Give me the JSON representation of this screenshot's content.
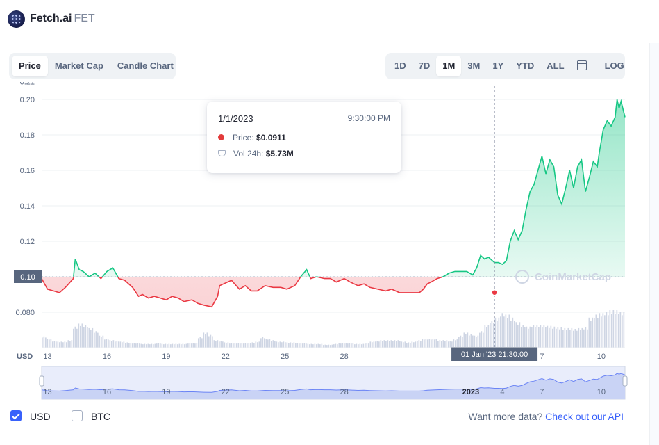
{
  "header": {
    "coin_name": "Fetch.ai",
    "coin_symbol": "FET"
  },
  "tabs_left": [
    "Price",
    "Market Cap",
    "Candle Chart"
  ],
  "active_left": "Price",
  "tabs_right": [
    "1D",
    "7D",
    "1M",
    "3M",
    "1Y",
    "YTD",
    "ALL"
  ],
  "active_right": "1M",
  "log_label": "LOG",
  "icons": {
    "calendar": "calendar-icon",
    "logo": "fetch-ai-logo"
  },
  "colors": {
    "up": "#16c784",
    "down": "#ea3943",
    "accent": "#3861fb",
    "nav": "#e9edfb"
  },
  "tooltip": {
    "date": "1/1/2023",
    "time": "9:30:00 PM",
    "price_label": "Price:",
    "price_value": "$0.0911",
    "vol_label": "Vol 24h:",
    "vol_value": "$5.73M"
  },
  "crosshair_label": "01 Jan '23   21:30:00",
  "crosshair_price_label": "0.10",
  "watermark": "CoinMarketCap",
  "bottom": {
    "usd_label": "USD",
    "btc_label": "BTC",
    "usd_checked": true,
    "btc_checked": false,
    "more_text": "Want more data?",
    "api_link": "Check out our API"
  },
  "chart_data": {
    "type": "line",
    "currency_label": "USD",
    "ylim": [
      0.072,
      0.21
    ],
    "yticks": [
      0.21,
      0.2,
      0.18,
      0.16,
      0.14,
      0.12,
      0.1,
      0.08
    ],
    "ytick_labels": [
      "0.21",
      "0.20",
      "0.18",
      "0.16",
      "0.14",
      "0.12",
      "0.10",
      "0.080"
    ],
    "xticks": [
      13,
      16,
      19,
      22,
      25,
      28,
      4,
      7,
      10
    ],
    "baseline_price": 0.1,
    "x": [
      12.9,
      13.2,
      13.5,
      13.8,
      14.1,
      14.5,
      14.6,
      14.8,
      15.0,
      15.3,
      15.6,
      15.9,
      16.2,
      16.5,
      16.8,
      17.1,
      17.5,
      17.8,
      18.0,
      18.3,
      18.6,
      18.9,
      19.2,
      19.5,
      19.8,
      20.1,
      20.5,
      20.8,
      21.1,
      21.5,
      21.8,
      21.9,
      22.1,
      22.5,
      22.9,
      23.2,
      23.5,
      23.8,
      24.2,
      24.6,
      25.0,
      25.3,
      25.7,
      26.0,
      26.3,
      26.5,
      26.8,
      27.2,
      27.5,
      27.8,
      28.2,
      28.5,
      28.9,
      29.2,
      29.5,
      29.9,
      30.3,
      30.6,
      31.0,
      31.3,
      31.7,
      32.0,
      32.2,
      32.4,
      32.6,
      32.9,
      33.2,
      33.5,
      33.8,
      34.1,
      34.4,
      34.7,
      34.9,
      35.1,
      35.3,
      35.5,
      35.8,
      36.0,
      36.2,
      36.4,
      36.6,
      36.8,
      37.0,
      37.2,
      37.4,
      37.6,
      37.8,
      38.0,
      38.2,
      38.4,
      38.6,
      38.8,
      39.0,
      39.2,
      39.4,
      39.6,
      39.8,
      40.0,
      40.2,
      40.4,
      40.6,
      40.8,
      41.0,
      41.1,
      41.3,
      41.5,
      41.7,
      41.9,
      42.0,
      42.1,
      42.2,
      42.4
    ],
    "y": [
      0.099,
      0.093,
      0.092,
      0.091,
      0.094,
      0.099,
      0.11,
      0.104,
      0.103,
      0.1,
      0.102,
      0.099,
      0.103,
      0.105,
      0.099,
      0.098,
      0.094,
      0.089,
      0.09,
      0.088,
      0.089,
      0.088,
      0.087,
      0.089,
      0.088,
      0.086,
      0.087,
      0.085,
      0.084,
      0.083,
      0.089,
      0.095,
      0.096,
      0.098,
      0.093,
      0.095,
      0.092,
      0.092,
      0.095,
      0.094,
      0.094,
      0.093,
      0.095,
      0.1,
      0.104,
      0.099,
      0.1,
      0.099,
      0.099,
      0.097,
      0.099,
      0.097,
      0.095,
      0.096,
      0.094,
      0.093,
      0.092,
      0.093,
      0.091,
      0.091,
      0.091,
      0.091,
      0.093,
      0.096,
      0.097,
      0.099,
      0.1,
      0.102,
      0.103,
      0.103,
      0.103,
      0.101,
      0.105,
      0.112,
      0.11,
      0.111,
      0.108,
      0.108,
      0.107,
      0.109,
      0.12,
      0.126,
      0.121,
      0.126,
      0.138,
      0.148,
      0.152,
      0.16,
      0.168,
      0.158,
      0.166,
      0.162,
      0.146,
      0.141,
      0.15,
      0.16,
      0.15,
      0.162,
      0.166,
      0.148,
      0.156,
      0.165,
      0.162,
      0.17,
      0.183,
      0.188,
      0.185,
      0.19,
      0.2,
      0.195,
      0.199,
      0.19
    ],
    "volume": [
      0.15,
      0.12,
      0.09,
      0.08,
      0.08,
      0.1,
      0.28,
      0.32,
      0.3,
      0.26,
      0.22,
      0.16,
      0.12,
      0.1,
      0.09,
      0.08,
      0.07,
      0.06,
      0.06,
      0.05,
      0.05,
      0.05,
      0.06,
      0.05,
      0.05,
      0.05,
      0.05,
      0.05,
      0.06,
      0.06,
      0.14,
      0.2,
      0.17,
      0.1,
      0.09,
      0.07,
      0.06,
      0.06,
      0.06,
      0.06,
      0.07,
      0.08,
      0.14,
      0.12,
      0.1,
      0.08,
      0.08,
      0.07,
      0.07,
      0.06,
      0.06,
      0.05,
      0.05,
      0.05,
      0.04,
      0.04,
      0.05,
      0.06,
      0.06,
      0.06,
      0.05,
      0.05,
      0.06,
      0.08,
      0.09,
      0.1,
      0.1,
      0.1,
      0.1,
      0.08,
      0.07,
      0.08,
      0.1,
      0.12,
      0.12,
      0.12,
      0.1,
      0.1,
      0.09,
      0.11,
      0.16,
      0.2,
      0.18,
      0.16,
      0.22,
      0.3,
      0.36,
      0.4,
      0.46,
      0.44,
      0.4,
      0.34,
      0.3,
      0.28,
      0.3,
      0.3,
      0.3,
      0.29,
      0.28,
      0.27,
      0.26,
      0.26,
      0.25,
      0.26,
      0.27,
      0.4,
      0.44,
      0.46,
      0.48,
      0.5,
      0.5,
      0.48
    ],
    "crosshair": {
      "x": 35.8,
      "y": 0.0911
    },
    "navigator": {
      "labels": [
        "13",
        "16",
        "19",
        "22",
        "25",
        "28",
        "2023",
        "4",
        "7",
        "10"
      ]
    }
  }
}
